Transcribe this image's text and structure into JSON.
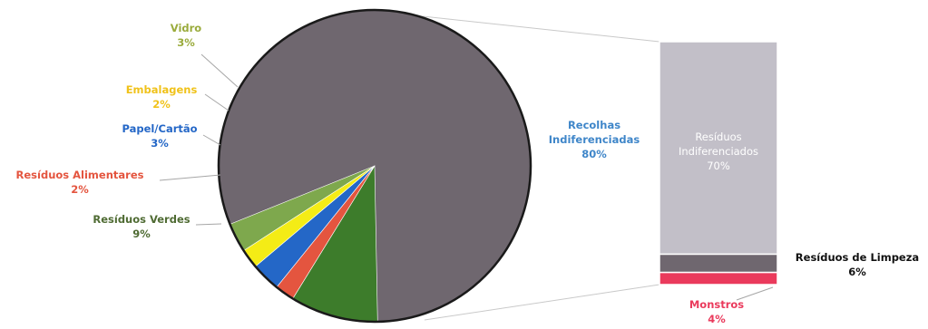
{
  "chart_data": {
    "type": "bar-of-pie",
    "pie": {
      "slices": [
        {
          "name": "Recolhas Indiferenciadas",
          "label": "Recolhas\nIndiferenciadas",
          "pct_text": "80%",
          "value": 80,
          "color": "#6f676f",
          "label_color": "#3f86c9"
        },
        {
          "name": "Resíduos Verdes",
          "label": "Resíduos Verdes",
          "pct_text": "9%",
          "value": 9,
          "color": "#3d7c2b",
          "label_color": "#4f6b33"
        },
        {
          "name": "Resíduos Alimentares",
          "label": "Resíduos Alimentares",
          "pct_text": "2%",
          "value": 2,
          "color": "#e4553f",
          "label_color": "#e4553f"
        },
        {
          "name": "Papel/Cartão",
          "label": "Papel/Cartão",
          "pct_text": "3%",
          "value": 3,
          "color": "#2467c7",
          "label_color": "#2467c7"
        },
        {
          "name": "Embalagens",
          "label": "Embalagens",
          "pct_text": "2%",
          "value": 2,
          "color": "#f4ec16",
          "label_color": "#f0c21a"
        },
        {
          "name": "Vidro",
          "label": "Vidro",
          "pct_text": "3%",
          "value": 3,
          "color": "#7ea84d",
          "label_color": "#9aab3c"
        }
      ]
    },
    "bar": {
      "segments": [
        {
          "name": "Resíduos Indiferenciados",
          "label": "Resíduos\nIndiferenciados",
          "pct_text": "70%",
          "value": 70,
          "color": "#c2bfc8",
          "label_color": "#ffffff"
        },
        {
          "name": "Resíduos de Limpeza",
          "label": "Resíduos de Limpeza",
          "pct_text": "6%",
          "value": 6,
          "color": "#6f676f",
          "label_color": "#111111"
        },
        {
          "name": "Monstros",
          "label": "Monstros",
          "pct_text": "4%",
          "value": 4,
          "color": "#ea3a5c",
          "label_color": "#ea3a5c"
        }
      ]
    },
    "title": "",
    "legend": "none"
  }
}
